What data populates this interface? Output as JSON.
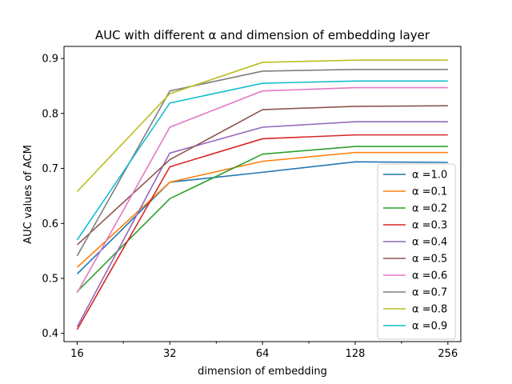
{
  "chart_data": {
    "type": "line",
    "title": "AUC with different α and dimension of embedding layer",
    "xlabel": "dimension of embedding",
    "ylabel": "AUC values of ACM",
    "x": [
      16,
      32,
      64,
      128,
      256
    ],
    "x_scale": "log2",
    "xlim": [
      14.5,
      282
    ],
    "ylim": [
      0.385,
      0.922
    ],
    "y_ticks": [
      0.4,
      0.5,
      0.6,
      0.7,
      0.8,
      0.9
    ],
    "x_ticks": [
      16,
      32,
      64,
      128,
      256
    ],
    "x_minor_ticks": [
      22.6,
      45.3,
      90.5,
      181
    ],
    "grid": false,
    "legend_position": "lower-right",
    "series": [
      {
        "name": "α =1.0",
        "color": "#1f77b4",
        "values": [
          0.508,
          0.675,
          0.693,
          0.712,
          0.711
        ]
      },
      {
        "name": "α =0.1",
        "color": "#ff7f0e",
        "values": [
          0.52,
          0.675,
          0.713,
          0.729,
          0.729
        ]
      },
      {
        "name": "α =0.2",
        "color": "#2ca02c",
        "values": [
          0.476,
          0.645,
          0.726,
          0.74,
          0.74
        ]
      },
      {
        "name": "α =0.3",
        "color": "#d62728",
        "values": [
          0.407,
          0.703,
          0.754,
          0.761,
          0.761
        ]
      },
      {
        "name": "α =0.4",
        "color": "#9467bd",
        "values": [
          0.412,
          0.728,
          0.775,
          0.785,
          0.785
        ]
      },
      {
        "name": "α =0.5",
        "color": "#8c564b",
        "values": [
          0.561,
          0.716,
          0.807,
          0.813,
          0.814
        ]
      },
      {
        "name": "α =0.6",
        "color": "#e377c2",
        "values": [
          0.474,
          0.775,
          0.841,
          0.847,
          0.847
        ]
      },
      {
        "name": "α =0.7",
        "color": "#7f7f7f",
        "values": [
          0.541,
          0.841,
          0.877,
          0.88,
          0.88
        ]
      },
      {
        "name": "α =0.8",
        "color": "#bcbd22",
        "values": [
          0.658,
          0.836,
          0.893,
          0.897,
          0.897
        ]
      },
      {
        "name": "α =0.9",
        "color": "#17becf",
        "values": [
          0.57,
          0.819,
          0.855,
          0.859,
          0.859
        ]
      }
    ]
  }
}
